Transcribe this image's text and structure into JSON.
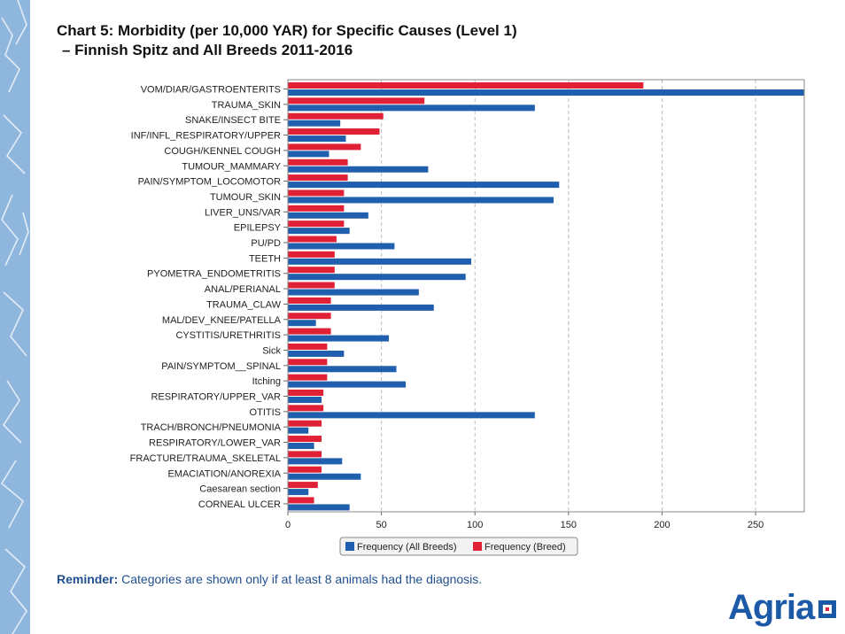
{
  "page": {
    "title_line1": "Chart 5: Morbidity (per 10,000 YAR) for Specific Causes (Level 1)",
    "title_line2": "–  Finnish Spitz and All Breeds 2011-2016",
    "reminder_label": "Reminder:",
    "reminder_text": " Categories are shown only if at least 8 animals had the diagnosis.",
    "logo_text": "Agria"
  },
  "colors": {
    "all_breeds": "#1f5fae",
    "breed": "#e02035",
    "grid": "#bbbbbb",
    "side_band": "#8fb6dc"
  },
  "chart_data": {
    "type": "bar",
    "orientation": "horizontal",
    "title": "Chart 5: Morbidity (per 10,000 YAR) for Specific Causes (Level 1) – Finnish Spitz and All Breeds 2011-2016",
    "xlabel": "",
    "ylabel": "",
    "xlim": [
      0,
      276
    ],
    "xticks": [
      0,
      50,
      100,
      150,
      200,
      250
    ],
    "grid": "vertical dashed",
    "legend_position": "bottom-center",
    "categories": [
      "VOM/DIAR/GASTROENTERITS",
      "TRAUMA_SKIN",
      "SNAKE/INSECT BITE",
      "INF/INFL_RESPIRATORY/UPPER",
      "COUGH/KENNEL COUGH",
      "TUMOUR_MAMMARY",
      "PAIN/SYMPTOM_LOCOMOTOR",
      "TUMOUR_SKIN",
      "LIVER_UNS/VAR",
      "EPILEPSY",
      "PU/PD",
      "TEETH",
      "PYOMETRA_ENDOMETRITIS",
      "ANAL/PERIANAL",
      "TRAUMA_CLAW",
      "MAL/DEV_KNEE/PATELLA",
      "CYSTITIS/URETHRITIS",
      "Sick",
      "PAIN/SYMPTOM__SPINAL",
      "Itching",
      "RESPIRATORY/UPPER_VAR",
      "OTITIS",
      "TRACH/BRONCH/PNEUMONIA",
      "RESPIRATORY/LOWER_VAR",
      "FRACTURE/TRAUMA_SKELETAL",
      "EMACIATION/ANOREXIA",
      "Caesarean section",
      "CORNEAL ULCER"
    ],
    "series": [
      {
        "name": "Frequency (Breed)",
        "values": [
          190,
          73,
          51,
          49,
          39,
          32,
          32,
          30,
          30,
          30,
          26,
          25,
          25,
          25,
          23,
          23,
          23,
          21,
          21,
          21,
          19,
          19,
          18,
          18,
          18,
          18,
          16,
          14
        ]
      },
      {
        "name": "Frequency (All Breeds)",
        "values": [
          276,
          132,
          28,
          31,
          22,
          75,
          145,
          142,
          43,
          33,
          57,
          98,
          95,
          70,
          78,
          15,
          54,
          30,
          58,
          63,
          18,
          132,
          11,
          14,
          29,
          39,
          11,
          33
        ]
      }
    ]
  }
}
